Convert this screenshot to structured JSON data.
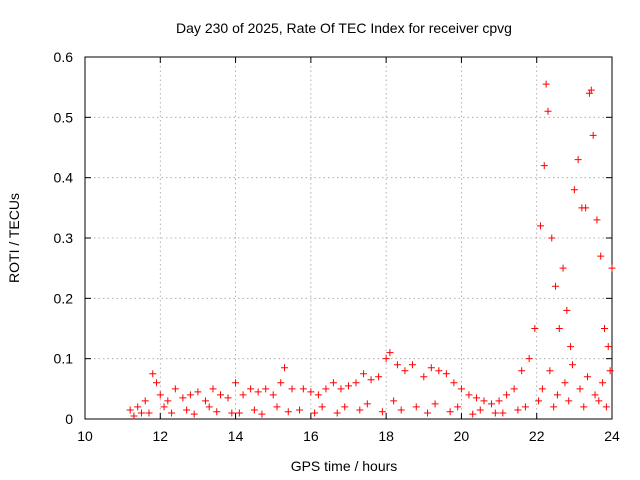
{
  "chart_data": {
    "type": "scatter",
    "title": "Day 230 of 2025, Rate Of TEC Index for receiver cpvg",
    "xlabel": "GPS time / hours",
    "ylabel": "ROTI / TECUs",
    "xlim": [
      10,
      24
    ],
    "ylim": [
      0,
      0.6
    ],
    "x_ticks": [
      "10",
      "12",
      "14",
      "16",
      "18",
      "20",
      "22",
      "24"
    ],
    "y_ticks": [
      "0",
      "0.1",
      "0.2",
      "0.3",
      "0.4",
      "0.5",
      "0.6"
    ],
    "grid": true,
    "marker": "plus",
    "point_color": "#ff0000",
    "series": [
      {
        "x": [
          11.2,
          11.4,
          11.6,
          11.8,
          11.9,
          12.0,
          12.2,
          12.4,
          12.6,
          12.8,
          13.0,
          13.2,
          13.4,
          13.6,
          13.8,
          14.0,
          14.2,
          14.4,
          14.6,
          14.8,
          15.0,
          15.2,
          15.3,
          15.5,
          15.8,
          16.0,
          16.2,
          16.4,
          16.6,
          16.8,
          17.0,
          17.2,
          17.4,
          17.6,
          17.8,
          18.0,
          18.1,
          18.3,
          18.5,
          18.7,
          19.0,
          19.2,
          19.4,
          19.6,
          19.8,
          20.0,
          20.2,
          20.4,
          20.6,
          20.8,
          21.0,
          21.2,
          21.4,
          21.6,
          21.8,
          21.95,
          22.1,
          22.2,
          22.25,
          22.3,
          22.4,
          22.5,
          22.6,
          22.7,
          22.8,
          22.9,
          23.0,
          23.1,
          23.2,
          23.3,
          23.4,
          23.45,
          23.5,
          23.6,
          23.7,
          23.8,
          23.9,
          24.0,
          11.5,
          12.1,
          12.7,
          13.3,
          13.9,
          14.5,
          15.1,
          15.7,
          16.3,
          16.9,
          17.5,
          18.2,
          18.8,
          19.3,
          19.9,
          20.5,
          21.1,
          21.7,
          22.15,
          22.35,
          22.55,
          22.75,
          22.95,
          23.15,
          23.35,
          23.55,
          23.75,
          23.95,
          11.3,
          11.7,
          12.3,
          12.9,
          13.5,
          14.1,
          14.7,
          15.4,
          16.1,
          16.7,
          17.3,
          17.9,
          18.4,
          19.1,
          19.7,
          20.3,
          20.9,
          21.5,
          22.05,
          22.45,
          22.85,
          23.25,
          23.65,
          23.85
        ],
        "y": [
          0.015,
          0.02,
          0.03,
          0.075,
          0.06,
          0.04,
          0.03,
          0.05,
          0.035,
          0.04,
          0.045,
          0.03,
          0.05,
          0.04,
          0.035,
          0.06,
          0.04,
          0.05,
          0.045,
          0.05,
          0.04,
          0.06,
          0.085,
          0.05,
          0.05,
          0.045,
          0.04,
          0.05,
          0.06,
          0.05,
          0.055,
          0.06,
          0.075,
          0.065,
          0.07,
          0.1,
          0.11,
          0.09,
          0.08,
          0.09,
          0.07,
          0.085,
          0.08,
          0.075,
          0.06,
          0.05,
          0.04,
          0.035,
          0.03,
          0.025,
          0.03,
          0.04,
          0.05,
          0.08,
          0.1,
          0.15,
          0.32,
          0.42,
          0.555,
          0.51,
          0.3,
          0.22,
          0.15,
          0.25,
          0.18,
          0.12,
          0.38,
          0.43,
          0.35,
          0.35,
          0.54,
          0.545,
          0.47,
          0.33,
          0.27,
          0.15,
          0.12,
          0.25,
          0.01,
          0.02,
          0.015,
          0.02,
          0.01,
          0.015,
          0.02,
          0.015,
          0.02,
          0.02,
          0.025,
          0.03,
          0.02,
          0.025,
          0.02,
          0.015,
          0.01,
          0.02,
          0.05,
          0.08,
          0.04,
          0.06,
          0.09,
          0.05,
          0.07,
          0.04,
          0.06,
          0.08,
          0.005,
          0.01,
          0.01,
          0.008,
          0.012,
          0.01,
          0.008,
          0.012,
          0.01,
          0.01,
          0.015,
          0.012,
          0.015,
          0.01,
          0.012,
          0.008,
          0.01,
          0.015,
          0.03,
          0.02,
          0.03,
          0.02,
          0.03,
          0.02
        ]
      }
    ]
  }
}
